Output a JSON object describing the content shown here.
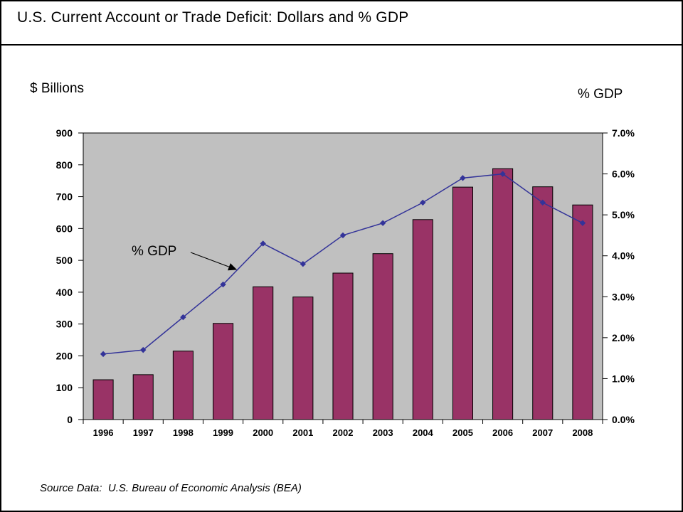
{
  "page": {
    "title": "U.S. Current Account or Trade Deficit: Dollars and % GDP",
    "source": "Source Data:  U.S. Bureau of Economic Analysis (BEA)"
  },
  "chart_data": {
    "type": "bar",
    "subtype": "bar-line-combo",
    "title": "U.S. Current Account or Trade Deficit: Dollars and % GDP",
    "categories": [
      "1996",
      "1997",
      "1998",
      "1999",
      "2000",
      "2001",
      "2002",
      "2003",
      "2004",
      "2005",
      "2006",
      "2007",
      "2008"
    ],
    "series": [
      {
        "name": "Deficit ($ Billions)",
        "type": "bar",
        "axis": "left",
        "color": "#993366",
        "values": [
          125,
          141,
          215,
          302,
          417,
          385,
          460,
          521,
          628,
          730,
          788,
          731,
          674
        ]
      },
      {
        "name": "% GDP",
        "type": "line",
        "axis": "right",
        "color": "#333399",
        "values": [
          1.6,
          1.7,
          2.5,
          3.3,
          4.3,
          3.8,
          4.5,
          4.8,
          5.3,
          5.9,
          6.0,
          5.3,
          4.8
        ]
      }
    ],
    "left_axis": {
      "label": "$ Billions",
      "min": 0,
      "max": 900,
      "step": 100,
      "ticks": [
        "0",
        "100",
        "200",
        "300",
        "400",
        "500",
        "600",
        "700",
        "800",
        "900"
      ]
    },
    "right_axis": {
      "label": "% GDP",
      "min": 0,
      "max": 7,
      "step": 1,
      "ticks": [
        "0.0%",
        "1.0%",
        "2.0%",
        "3.0%",
        "4.0%",
        "5.0%",
        "6.0%",
        "7.0%"
      ]
    },
    "annotation": {
      "text": "% GDP"
    },
    "plot_bg": "#C0C0C0",
    "grid": false,
    "legend_position": "none"
  }
}
